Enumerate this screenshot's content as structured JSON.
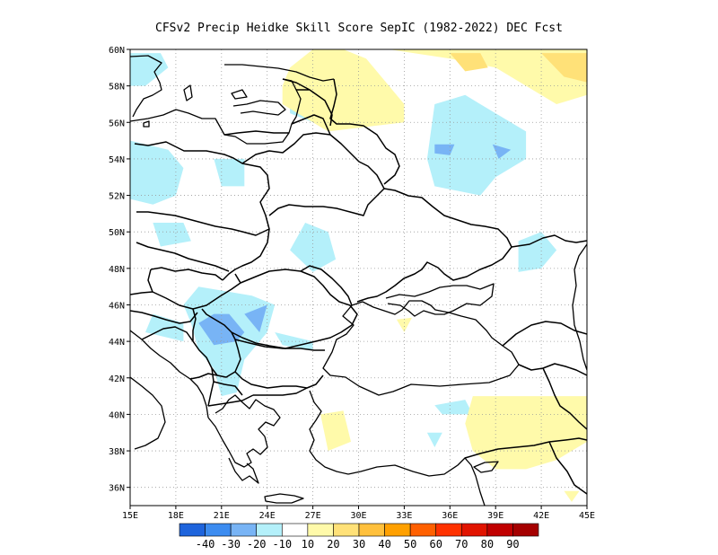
{
  "title": "CFSv2 Precip Heidke Skill Score SepIC (1982-2022) DEC Fcst",
  "map": {
    "lon_range": [
      15,
      45
    ],
    "lat_range": [
      35,
      60
    ],
    "lon_ticks": [
      {
        "value": 15,
        "label": "15E"
      },
      {
        "value": 18,
        "label": "18E"
      },
      {
        "value": 21,
        "label": "21E"
      },
      {
        "value": 24,
        "label": "24E"
      },
      {
        "value": 27,
        "label": "27E"
      },
      {
        "value": 30,
        "label": "30E"
      },
      {
        "value": 33,
        "label": "33E"
      },
      {
        "value": 36,
        "label": "36E"
      },
      {
        "value": 39,
        "label": "39E"
      },
      {
        "value": 42,
        "label": "42E"
      },
      {
        "value": 45,
        "label": "45E"
      }
    ],
    "lat_ticks": [
      {
        "value": 36,
        "label": "36N"
      },
      {
        "value": 38,
        "label": "38N"
      },
      {
        "value": 40,
        "label": "40N"
      },
      {
        "value": 42,
        "label": "42N"
      },
      {
        "value": 44,
        "label": "44N"
      },
      {
        "value": 46,
        "label": "46N"
      },
      {
        "value": 48,
        "label": "48N"
      },
      {
        "value": 50,
        "label": "50N"
      },
      {
        "value": 52,
        "label": "52N"
      },
      {
        "value": 54,
        "label": "54N"
      },
      {
        "value": 56,
        "label": "56N"
      },
      {
        "value": 58,
        "label": "58N"
      },
      {
        "value": 60,
        "label": "60N"
      }
    ],
    "grid": true,
    "colorbar": {
      "colors": [
        "#1e64dc",
        "#3c8cf0",
        "#78b4f5",
        "#b4f0fa",
        "#ffffff",
        "#fffaaa",
        "#ffe178",
        "#ffc03c",
        "#ffa000",
        "#ff6000",
        "#ff3200",
        "#e11400",
        "#c00000",
        "#a50000"
      ],
      "labels": [
        "-40",
        "-30",
        "-20",
        "-10",
        "10",
        "20",
        "30",
        "40",
        "50",
        "60",
        "70",
        "80",
        "90"
      ]
    }
  },
  "chart_data": {
    "type": "heatmap",
    "title": "CFSv2 Precip Heidke Skill Score SepIC (1982-2022) DEC Fcst",
    "x_range": [
      15,
      45
    ],
    "y_range": [
      35,
      60
    ],
    "color_levels": [
      -40,
      -30,
      -20,
      -10,
      10,
      20,
      30,
      40,
      50,
      60,
      70,
      80,
      90
    ],
    "regions": [
      {
        "level": "0 to -10",
        "color": "#b4f0fa",
        "coords": [
          [
            15,
            59.8
          ],
          [
            17,
            59.8
          ],
          [
            17.5,
            59
          ],
          [
            16,
            58
          ],
          [
            15,
            58
          ]
        ]
      },
      {
        "level": "0 to -10",
        "color": "#b4f0fa",
        "coords": [
          [
            15,
            55
          ],
          [
            17.5,
            54.5
          ],
          [
            18.5,
            53.5
          ],
          [
            18,
            52
          ],
          [
            16.5,
            51.5
          ],
          [
            15,
            51.8
          ]
        ]
      },
      {
        "level": "0 to -10",
        "color": "#b4f0fa",
        "coords": [
          [
            20.5,
            54
          ],
          [
            22.5,
            54
          ],
          [
            22.5,
            52.5
          ],
          [
            21,
            52.5
          ]
        ]
      },
      {
        "level": "0 to -10",
        "color": "#b4f0fa",
        "coords": [
          [
            16.5,
            50.5
          ],
          [
            18.5,
            50.5
          ],
          [
            19,
            49.5
          ],
          [
            17,
            49.2
          ]
        ]
      },
      {
        "level": "0 to -10",
        "color": "#b4f0fa",
        "coords": [
          [
            25.5,
            57.5
          ],
          [
            27.5,
            57.5
          ],
          [
            27,
            56
          ],
          [
            25.5,
            56.5
          ]
        ]
      },
      {
        "level": "0 to -10",
        "color": "#b4f0fa",
        "coords": [
          [
            25.5,
            49
          ],
          [
            26.5,
            50.5
          ],
          [
            28,
            50
          ],
          [
            28.5,
            48.5
          ],
          [
            27,
            47.8
          ]
        ]
      },
      {
        "level": "0 to -10",
        "color": "#b4f0fa",
        "coords": [
          [
            19.5,
            47
          ],
          [
            23,
            46.5
          ],
          [
            24.5,
            46
          ],
          [
            24,
            44.5
          ],
          [
            22.5,
            43
          ],
          [
            22,
            41.2
          ],
          [
            21,
            41
          ],
          [
            20.5,
            42.5
          ],
          [
            19.5,
            43.5
          ],
          [
            19,
            45
          ],
          [
            18.5,
            46
          ]
        ]
      },
      {
        "level": "0 to -10",
        "color": "#b4f0fa",
        "coords": [
          [
            16,
            44.5
          ],
          [
            18.5,
            44
          ],
          [
            18.5,
            45
          ],
          [
            16.5,
            45.5
          ]
        ]
      },
      {
        "level": "0 to -10",
        "color": "#b4f0fa",
        "coords": [
          [
            24.5,
            44.5
          ],
          [
            27,
            44
          ],
          [
            27,
            43.5
          ],
          [
            25,
            43.8
          ]
        ]
      },
      {
        "level": "0 to -10",
        "color": "#b4f0fa",
        "coords": [
          [
            35,
            57
          ],
          [
            37,
            57.5
          ],
          [
            38,
            57
          ],
          [
            41,
            55.5
          ],
          [
            41,
            54
          ],
          [
            39,
            53
          ],
          [
            38,
            52
          ],
          [
            35,
            52.5
          ],
          [
            34.5,
            54
          ]
        ]
      },
      {
        "level": "0 to -10",
        "color": "#b4f0fa",
        "coords": [
          [
            40.5,
            49.5
          ],
          [
            42,
            50
          ],
          [
            43,
            49
          ],
          [
            42,
            48
          ],
          [
            40.5,
            47.8
          ]
        ]
      },
      {
        "level": "0 to -10",
        "color": "#b4f0fa",
        "coords": [
          [
            35,
            40.5
          ],
          [
            37,
            40.8
          ],
          [
            37.5,
            40
          ],
          [
            35.5,
            40
          ]
        ]
      },
      {
        "level": "0 to -10",
        "color": "#b4f0fa",
        "coords": [
          [
            34.5,
            39
          ],
          [
            35.5,
            39
          ],
          [
            35,
            38.2
          ]
        ]
      },
      {
        "level": "-10 to -20",
        "color": "#78b4f5",
        "coords": [
          [
            19.5,
            45
          ],
          [
            20.5,
            45.5
          ],
          [
            21.5,
            45.5
          ],
          [
            22.5,
            44.5
          ],
          [
            22,
            44
          ],
          [
            20.5,
            43.8
          ]
        ]
      },
      {
        "level": "-10 to -20",
        "color": "#78b4f5",
        "coords": [
          [
            22.5,
            45.5
          ],
          [
            24,
            46
          ],
          [
            23.5,
            44.5
          ]
        ]
      },
      {
        "level": "-10 to -20",
        "color": "#78b4f5",
        "coords": [
          [
            35,
            54.8
          ],
          [
            36.3,
            54.8
          ],
          [
            36,
            54.2
          ],
          [
            35,
            54.3
          ]
        ]
      },
      {
        "level": "-10 to -20",
        "color": "#78b4f5",
        "coords": [
          [
            38.8,
            54.8
          ],
          [
            40,
            54.5
          ],
          [
            39.2,
            54
          ]
        ]
      },
      {
        "level": "10 to 20",
        "color": "#fffaaa",
        "coords": [
          [
            27,
            60
          ],
          [
            29,
            60
          ],
          [
            30.5,
            59.5
          ],
          [
            32,
            58
          ],
          [
            33,
            57
          ],
          [
            33,
            56
          ],
          [
            31,
            55.8
          ],
          [
            28,
            55.5
          ],
          [
            26,
            56.5
          ],
          [
            25,
            57
          ],
          [
            25,
            58
          ],
          [
            25.5,
            59
          ]
        ]
      },
      {
        "level": "10 to 20",
        "color": "#fffaaa",
        "coords": [
          [
            32,
            60
          ],
          [
            45,
            60
          ],
          [
            45,
            57.5
          ],
          [
            43,
            57
          ],
          [
            41,
            58
          ],
          [
            39,
            59
          ],
          [
            36,
            59.5
          ]
        ]
      },
      {
        "level": "10 to 20",
        "color": "#fffaaa",
        "coords": [
          [
            37.5,
            41
          ],
          [
            45,
            41
          ],
          [
            45,
            38.5
          ],
          [
            43,
            37.5
          ],
          [
            41,
            37
          ],
          [
            39,
            37
          ],
          [
            37.5,
            38
          ],
          [
            37,
            39.5
          ]
        ]
      },
      {
        "level": "10 to 20",
        "color": "#fffaaa",
        "coords": [
          [
            27.5,
            40
          ],
          [
            29,
            40.2
          ],
          [
            29.5,
            38.5
          ],
          [
            28,
            38
          ]
        ]
      },
      {
        "level": "10 to 20",
        "color": "#fffaaa",
        "coords": [
          [
            32.5,
            45.2
          ],
          [
            33.5,
            45.3
          ],
          [
            33,
            44.5
          ]
        ]
      },
      {
        "level": "10 to 20",
        "color": "#fffaaa",
        "coords": [
          [
            43.5,
            35.8
          ],
          [
            44.5,
            35.8
          ],
          [
            44,
            35.2
          ]
        ]
      },
      {
        "level": "20 to 30",
        "color": "#ffe178",
        "coords": [
          [
            36,
            59.8
          ],
          [
            38,
            59.8
          ],
          [
            38.5,
            59
          ],
          [
            37,
            58.8
          ]
        ]
      },
      {
        "level": "20 to 30",
        "color": "#ffe178",
        "coords": [
          [
            42,
            59.8
          ],
          [
            45,
            59.8
          ],
          [
            45,
            58.2
          ],
          [
            43.5,
            58.5
          ]
        ]
      }
    ]
  }
}
